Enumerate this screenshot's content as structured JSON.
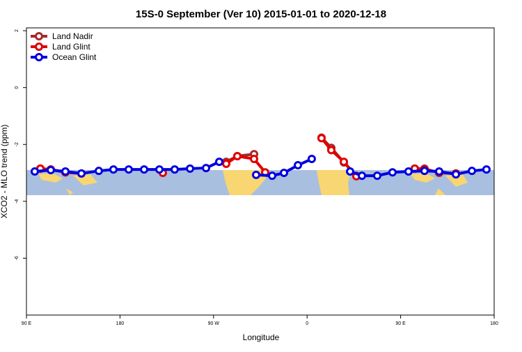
{
  "chart_data": {
    "type": "line",
    "title": "15S-0 September (Ver 10)   2015-01-01 to 2020-12-18",
    "x_label": "Longitude",
    "y_label": "XCO2 - MLO trend (ppm)",
    "xlim": [
      90,
      540
    ],
    "ylim": [
      -8,
      2.1
    ],
    "xticks": [
      {
        "value": 90,
        "label": "90 E"
      },
      180,
      {
        "value": 270,
        "label": "90 W"
      },
      {
        "value": 360,
        "label": "0"
      },
      {
        "value": 450,
        "label": "90 E"
      },
      {
        "value": 540,
        "label": "180"
      }
    ],
    "yticks": [
      2,
      0,
      -2,
      -4,
      -6
    ],
    "legend": "top-left",
    "series": [
      {
        "name": "Land Nadir",
        "color": "#a52a2a",
        "x": [
          103.4,
          113.4,
          127.5,
          null,
          282.2,
          292.9,
          309,
          null,
          373.9,
          383.3,
          395.4,
          407.4,
          null,
          463.6,
          473,
          487.1,
          503.2
        ],
        "values": [
          -2.85,
          -2.88,
          -2.98,
          null,
          -2.61,
          -2.41,
          -2.34,
          null,
          -1.76,
          -2.12,
          -2.63,
          -3.1,
          null,
          -2.85,
          -2.85,
          -3.0,
          -3.02
        ]
      },
      {
        "name": "Land Glint",
        "color": "#e00000",
        "x": [
          103.4,
          113.4,
          127.5,
          142.9,
          null,
          221.2,
          null,
          282.2,
          292.9,
          309,
          319.7,
          null,
          373.9,
          383.3,
          395.4,
          407.4,
          null,
          463.6,
          473,
          487.1,
          503.2
        ],
        "values": [
          -2.85,
          -2.88,
          -2.98,
          -3.02,
          null,
          -3.0,
          null,
          -2.68,
          -2.41,
          -2.51,
          -2.98,
          null,
          -1.78,
          -2.2,
          -2.61,
          -3.12,
          null,
          -2.85,
          -2.88,
          -2.98,
          -3.02
        ]
      },
      {
        "name": "Ocean Glint",
        "color": "#0000e0",
        "x": [
          98,
          113.4,
          127.5,
          142.9,
          159.6,
          173.7,
          188.4,
          203.2,
          217.9,
          232.6,
          247.4,
          262.8,
          275.5,
          null,
          311,
          326.4,
          337.8,
          351.2,
          364.5,
          null,
          401.4,
          412.8,
          427.5,
          442.2,
          457.6,
          473,
          487.1,
          503.2,
          518.6,
          532.6
        ],
        "values": [
          -2.95,
          -2.9,
          -2.95,
          -3.02,
          -2.93,
          -2.88,
          -2.88,
          -2.88,
          -2.88,
          -2.88,
          -2.85,
          -2.83,
          -2.61,
          null,
          -3.07,
          -3.1,
          -3.0,
          -2.73,
          -2.51,
          null,
          -2.95,
          -3.1,
          -3.1,
          -2.98,
          -2.95,
          -2.93,
          -2.95,
          -3.05,
          -2.93,
          -2.88
        ]
      }
    ]
  }
}
